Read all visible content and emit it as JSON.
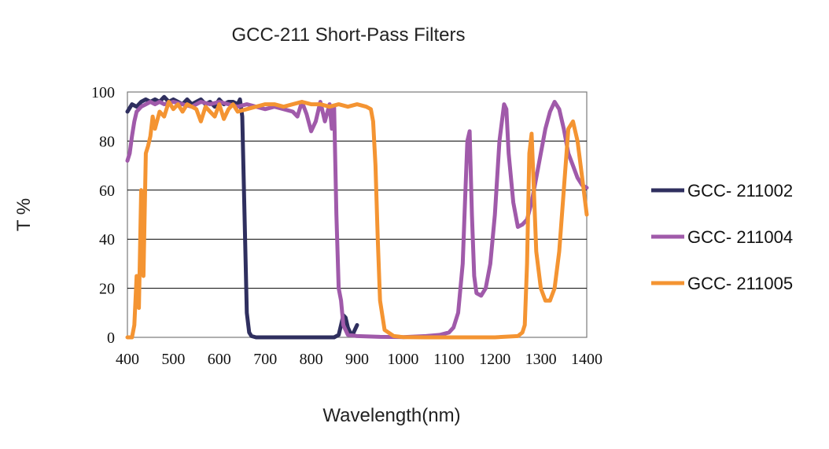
{
  "chart_data": {
    "type": "line",
    "title": "GCC-211 Short-Pass Filters",
    "xlabel": "Wavelength(nm)",
    "ylabel": "T %",
    "xlim": [
      400,
      1400
    ],
    "ylim": [
      0,
      100
    ],
    "x_ticks": [
      400,
      500,
      600,
      700,
      800,
      900,
      1000,
      1100,
      1200,
      1300,
      1400
    ],
    "y_ticks": [
      0,
      20,
      40,
      60,
      80,
      100
    ],
    "grid": "horizontal",
    "legend_position": "right",
    "series": [
      {
        "name": "GCC- 211002",
        "color": "#2f2f5f",
        "x": [
          400,
          410,
          420,
          430,
          440,
          450,
          460,
          470,
          480,
          490,
          500,
          510,
          520,
          530,
          540,
          550,
          560,
          570,
          580,
          590,
          600,
          610,
          620,
          630,
          640,
          645,
          650,
          655,
          660,
          665,
          670,
          680,
          700,
          750,
          800,
          850,
          860,
          865,
          870,
          875,
          880,
          885,
          890,
          895,
          900
        ],
        "y": [
          92,
          95,
          94,
          96,
          97,
          96,
          97,
          96,
          98,
          96,
          97,
          96,
          95,
          97,
          95,
          96,
          97,
          95,
          96,
          94,
          97,
          95,
          96,
          96,
          95,
          97,
          90,
          50,
          10,
          2,
          0.5,
          0,
          0,
          0,
          0,
          0,
          1,
          5,
          9,
          8,
          4,
          2,
          1,
          3,
          5
        ]
      },
      {
        "name": "GCC- 211004",
        "color": "#a05aaa",
        "x": [
          400,
          405,
          410,
          415,
          420,
          430,
          440,
          450,
          460,
          470,
          480,
          500,
          520,
          540,
          560,
          580,
          600,
          620,
          640,
          660,
          680,
          700,
          720,
          740,
          760,
          770,
          780,
          790,
          800,
          810,
          820,
          830,
          840,
          845,
          850,
          855,
          860,
          865,
          870,
          880,
          900,
          950,
          1000,
          1050,
          1080,
          1100,
          1110,
          1120,
          1130,
          1135,
          1140,
          1145,
          1150,
          1155,
          1160,
          1170,
          1180,
          1190,
          1200,
          1210,
          1220,
          1225,
          1230,
          1240,
          1250,
          1260,
          1270,
          1280,
          1290,
          1300,
          1310,
          1320,
          1330,
          1340,
          1350,
          1360,
          1370,
          1380,
          1390,
          1400
        ],
        "y": [
          72,
          75,
          82,
          88,
          92,
          94,
          95,
          96,
          95,
          96,
          95,
          96,
          95,
          94,
          96,
          95,
          96,
          95,
          94,
          95,
          94,
          93,
          94,
          93,
          92,
          90,
          96,
          91,
          84,
          88,
          96,
          88,
          95,
          85,
          94,
          50,
          20,
          15,
          5,
          1,
          0.5,
          0.2,
          0.1,
          0.5,
          1,
          2,
          4,
          10,
          30,
          55,
          80,
          84,
          50,
          25,
          18,
          17,
          20,
          30,
          50,
          80,
          95,
          93,
          75,
          55,
          45,
          46,
          48,
          55,
          65,
          75,
          85,
          92,
          96,
          93,
          85,
          75,
          70,
          65,
          62,
          61
        ]
      },
      {
        "name": "GCC- 211005",
        "color": "#f49432",
        "x": [
          400,
          405,
          410,
          415,
          420,
          425,
          430,
          435,
          440,
          445,
          450,
          455,
          460,
          470,
          480,
          490,
          500,
          510,
          520,
          530,
          540,
          550,
          560,
          570,
          580,
          590,
          600,
          610,
          620,
          630,
          640,
          660,
          680,
          700,
          720,
          740,
          760,
          780,
          800,
          820,
          840,
          860,
          880,
          900,
          920,
          930,
          935,
          940,
          945,
          950,
          960,
          980,
          1000,
          1050,
          1100,
          1150,
          1200,
          1250,
          1260,
          1265,
          1270,
          1275,
          1280,
          1285,
          1290,
          1300,
          1310,
          1320,
          1330,
          1340,
          1350,
          1360,
          1370,
          1380,
          1390,
          1400
        ],
        "y": [
          0,
          0,
          0,
          5,
          25,
          12,
          60,
          25,
          75,
          78,
          82,
          90,
          85,
          92,
          90,
          96,
          93,
          95,
          92,
          95,
          94,
          93,
          88,
          94,
          92,
          90,
          95,
          89,
          93,
          95,
          92,
          93,
          94,
          95,
          95,
          94,
          95,
          96,
          95,
          95,
          94,
          95,
          94,
          95,
          94,
          93,
          88,
          70,
          40,
          15,
          3,
          0.5,
          0.1,
          0,
          0,
          0,
          0,
          0.5,
          2,
          5,
          30,
          75,
          83,
          60,
          35,
          20,
          15,
          15,
          20,
          35,
          60,
          85,
          88,
          80,
          65,
          50
        ]
      }
    ]
  }
}
